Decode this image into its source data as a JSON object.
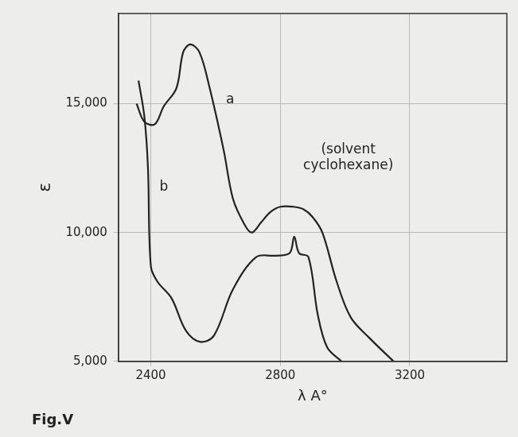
{
  "chart_data": {
    "type": "line",
    "title": "Fig.V",
    "x_label": "λ A°",
    "y_label": "ε",
    "xlim": [
      2300,
      3500
    ],
    "xticks": [
      2400,
      2800,
      3200
    ],
    "ylim": [
      5000,
      18500
    ],
    "yticks": [
      {
        "value": 5000,
        "label": "5,000"
      },
      {
        "value": 10000,
        "label": "10,000"
      },
      {
        "value": 15000,
        "label": "15,000"
      }
    ],
    "grid": true,
    "series": [
      {
        "color": "#222222",
        "x": [
          2356,
          2380,
          2412,
          2440,
          2479,
          2500,
          2522,
          2550,
          2580,
          2625,
          2654,
          2690,
          2712,
          2741,
          2770,
          2800,
          2840,
          2872,
          2900,
          2930,
          2974,
          3018,
          3076,
          3150
        ],
        "values": [
          15000,
          14300,
          14200,
          14900,
          15600,
          17000,
          17300,
          17000,
          15700,
          13200,
          11300,
          10300,
          10000,
          10400,
          10800,
          11000,
          11000,
          10900,
          10600,
          10000,
          8100,
          6700,
          5900,
          5000
        ]
      },
      {
        "color": "#222222",
        "x": [
          2362,
          2380,
          2391,
          2400,
          2420,
          2464,
          2508,
          2552,
          2595,
          2654,
          2726,
          2785,
          2829,
          2843,
          2858,
          2887,
          2916,
          2945,
          2989
        ],
        "values": [
          15900,
          14500,
          12550,
          8700,
          8100,
          7450,
          6200,
          5760,
          6000,
          7800,
          9050,
          9100,
          9200,
          9840,
          9200,
          9050,
          6800,
          5540,
          5000
        ]
      }
    ],
    "annotations": [
      {
        "text": "a",
        "x": 2645,
        "y": 15150
      },
      {
        "text": "b",
        "x": 2440,
        "y": 11750
      },
      {
        "text": "(solvent cyclohexane)",
        "x": 3010,
        "y": 12900
      }
    ]
  }
}
